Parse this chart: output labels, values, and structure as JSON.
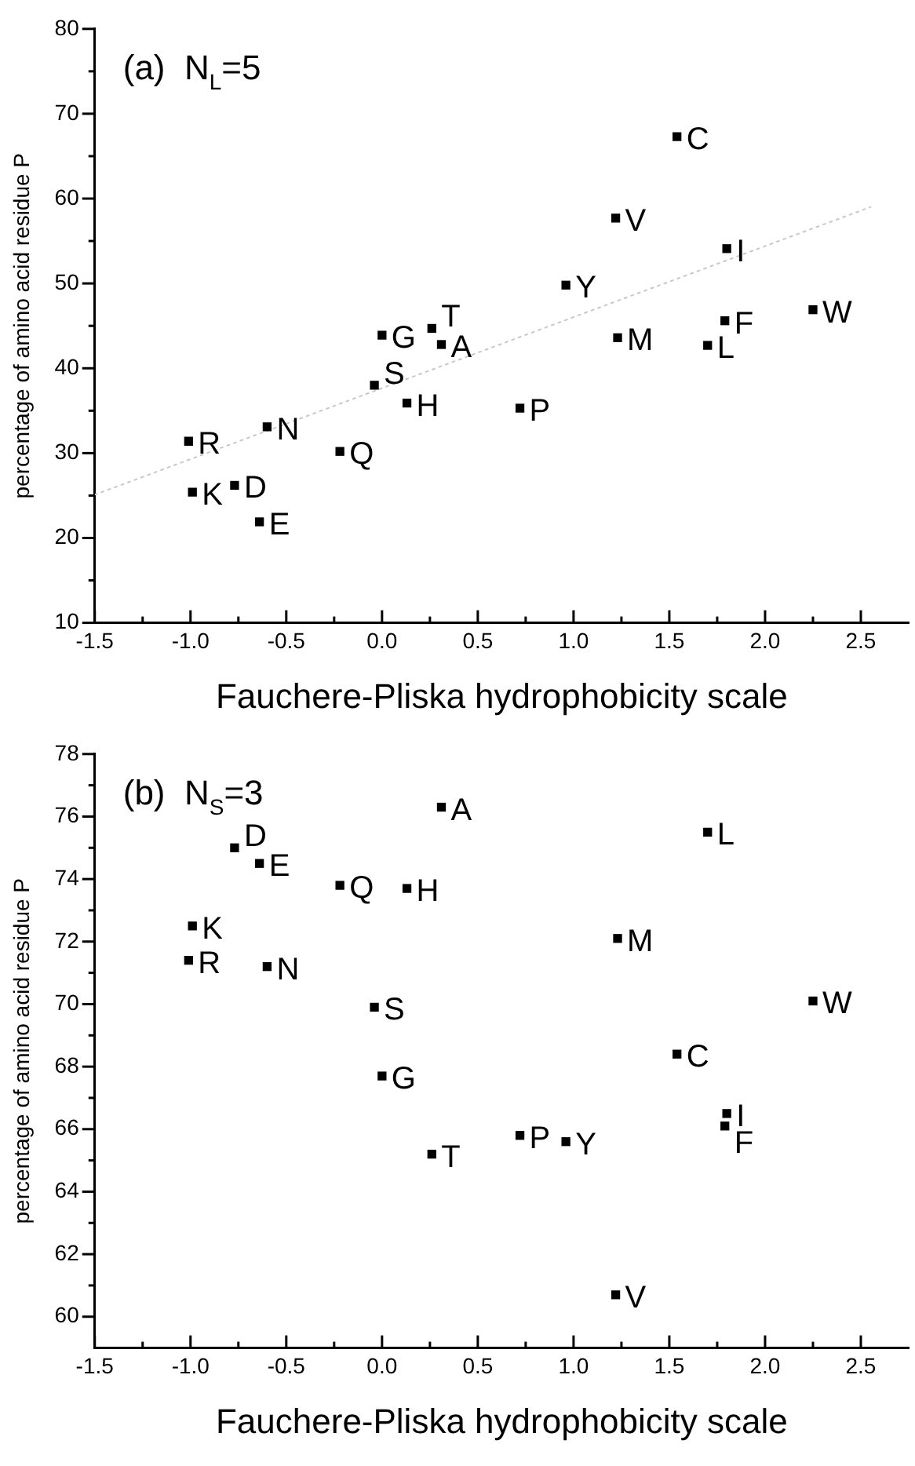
{
  "chart_data": [
    {
      "type": "scatter",
      "annotations": [
        "(a)  N$_{L}$=5"
      ],
      "xlabel": "Fauchere-Pliska hydrophobicity scale",
      "ylabel": "percentage of amino acid residue P",
      "xlim": [
        -1.5,
        2.75
      ],
      "ylim": [
        10,
        80
      ],
      "xticks": [
        {
          "value": -1.5,
          "label": "-1.5"
        },
        {
          "value": -1.25,
          "label": null
        },
        {
          "value": -1,
          "label": "-1.0"
        },
        {
          "value": -0.75,
          "label": null
        },
        {
          "value": -0.5,
          "label": "-0.5"
        },
        {
          "value": -0.25,
          "label": null
        },
        {
          "value": 0,
          "label": "0.0"
        },
        {
          "value": 0.25,
          "label": null
        },
        {
          "value": 0.5,
          "label": "0.5"
        },
        {
          "value": 0.75,
          "label": null
        },
        {
          "value": 1,
          "label": "1.0"
        },
        {
          "value": 1.25,
          "label": null
        },
        {
          "value": 1.5,
          "label": "1.5"
        },
        {
          "value": 1.75,
          "label": null
        },
        {
          "value": 2,
          "label": "2.0"
        },
        {
          "value": 2.25,
          "label": null
        },
        {
          "value": 2.5,
          "label": "2.5"
        }
      ],
      "yticks": [
        10,
        {
          "value": 15,
          "label": null
        },
        20,
        {
          "value": 25,
          "label": null
        },
        30,
        {
          "value": 35,
          "label": null
        },
        40,
        {
          "value": 45,
          "label": null
        },
        50,
        {
          "value": 55,
          "label": null
        },
        60,
        {
          "value": 65,
          "label": null
        },
        70,
        {
          "value": 75,
          "label": null
        },
        80
      ],
      "marker": "square",
      "line_style": "dotted",
      "grid": false,
      "legend": false,
      "series": [
        {
          "type": "scatter",
          "color": "#000000",
          "x": [
            -1.01,
            -0.99,
            -0.77,
            -0.64,
            -0.6,
            -0.22,
            -0.04,
            0.0,
            0.13,
            0.26,
            0.31,
            0.72,
            0.96,
            1.22,
            1.23,
            1.54,
            1.7,
            1.79,
            1.8,
            2.25
          ],
          "values": [
            31.4,
            25.4,
            26.2,
            21.9,
            33.1,
            30.2,
            38.0,
            43.9,
            35.9,
            44.7,
            42.8,
            35.3,
            49.8,
            57.7,
            43.6,
            67.3,
            42.7,
            45.6,
            54.1,
            46.9
          ],
          "value_labels": [
            "R",
            "K",
            "D",
            "E",
            "N",
            "Q",
            "S",
            "G",
            "H",
            "T",
            "A",
            "P",
            "Y",
            "V",
            "M",
            "C",
            "L",
            "F",
            "I",
            "W"
          ]
        },
        {
          "type": "line",
          "marker": "none",
          "color": "#c8c8c8",
          "x": [
            -1.5,
            2.55
          ],
          "values": [
            25.1,
            59.0
          ]
        }
      ]
    },
    {
      "type": "scatter",
      "annotations": [
        "(b)  N$_{S}$=3"
      ],
      "xlabel": "Fauchere-Pliska hydrophobicity scale",
      "ylabel": "percentage of amino acid residue P",
      "xlim": [
        -1.5,
        2.75
      ],
      "ylim": [
        59,
        78
      ],
      "xticks": [
        {
          "value": -1.5,
          "label": "-1.5"
        },
        {
          "value": -1.25,
          "label": null
        },
        {
          "value": -1,
          "label": "-1.0"
        },
        {
          "value": -0.75,
          "label": null
        },
        {
          "value": -0.5,
          "label": "-0.5"
        },
        {
          "value": -0.25,
          "label": null
        },
        {
          "value": 0,
          "label": "0.0"
        },
        {
          "value": 0.25,
          "label": null
        },
        {
          "value": 0.5,
          "label": "0.5"
        },
        {
          "value": 0.75,
          "label": null
        },
        {
          "value": 1,
          "label": "1.0"
        },
        {
          "value": 1.25,
          "label": null
        },
        {
          "value": 1.5,
          "label": "1.5"
        },
        {
          "value": 1.75,
          "label": null
        },
        {
          "value": 2,
          "label": "2.0"
        },
        {
          "value": 2.25,
          "label": null
        },
        {
          "value": 2.5,
          "label": "2.5"
        }
      ],
      "yticks": [
        60,
        {
          "value": 61,
          "label": null
        },
        62,
        {
          "value": 63,
          "label": null
        },
        64,
        {
          "value": 65,
          "label": null
        },
        66,
        {
          "value": 67,
          "label": null
        },
        68,
        {
          "value": 69,
          "label": null
        },
        70,
        {
          "value": 71,
          "label": null
        },
        72,
        {
          "value": 73,
          "label": null
        },
        74,
        {
          "value": 75,
          "label": null
        },
        76,
        {
          "value": 77,
          "label": null
        },
        78
      ],
      "marker": "square",
      "grid": false,
      "legend": false,
      "series": [
        {
          "type": "scatter",
          "color": "#000000",
          "x": [
            -1.01,
            -0.99,
            -0.77,
            -0.64,
            -0.6,
            -0.22,
            -0.04,
            0.0,
            0.13,
            0.26,
            0.31,
            0.72,
            0.96,
            1.22,
            1.23,
            1.54,
            1.7,
            1.79,
            1.8,
            2.25
          ],
          "values": [
            71.4,
            72.5,
            75.0,
            74.5,
            71.2,
            73.8,
            69.9,
            67.7,
            73.7,
            65.2,
            76.3,
            65.8,
            65.6,
            60.7,
            72.1,
            68.4,
            75.5,
            66.1,
            66.5,
            70.1
          ],
          "value_labels": [
            "R",
            "K",
            "D",
            "E",
            "N",
            "Q",
            "S",
            "G",
            "H",
            "T",
            "A",
            "P",
            "Y",
            "V",
            "M",
            "C",
            "L",
            "F",
            "I",
            "W"
          ]
        }
      ]
    }
  ]
}
